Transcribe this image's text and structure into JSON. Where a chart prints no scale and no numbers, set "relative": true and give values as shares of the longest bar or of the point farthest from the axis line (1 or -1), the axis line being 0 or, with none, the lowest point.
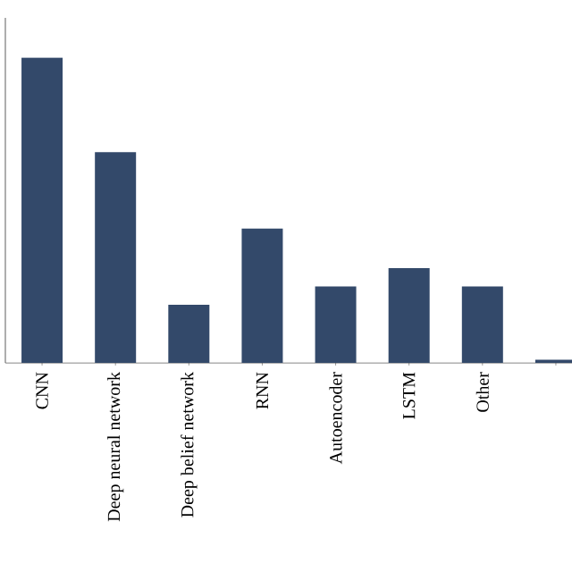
{
  "chart_data": {
    "type": "bar",
    "relative": true,
    "color": "#33496a",
    "categories": [
      "CNN",
      "Deep neural network",
      "Deep belief network",
      "RNN",
      "Autoencoder",
      "LSTM",
      "Other",
      null
    ],
    "values": [
      1,
      0.69,
      0.19,
      0.44,
      0.25,
      0.31,
      0.25,
      0.01
    ]
  }
}
